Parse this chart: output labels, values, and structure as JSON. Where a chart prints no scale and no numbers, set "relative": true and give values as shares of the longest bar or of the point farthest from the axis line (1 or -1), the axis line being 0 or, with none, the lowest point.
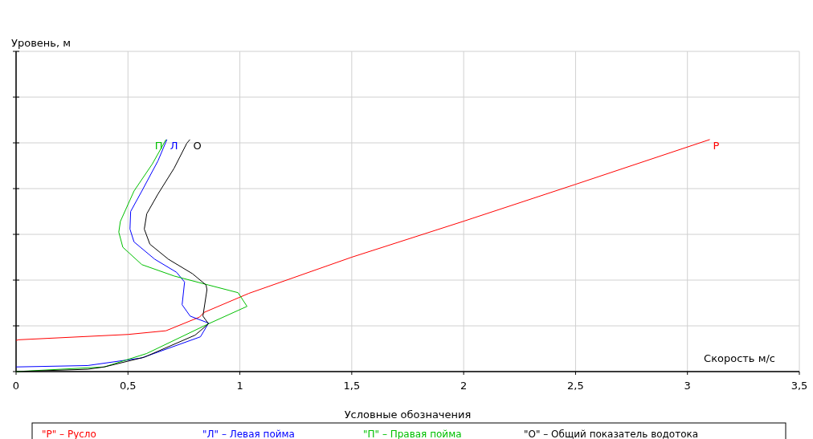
{
  "chart_data": {
    "type": "line",
    "relative": true,
    "xlabel": "Скорость м/с",
    "legend_title": "Условные обозначения",
    "legend": "bottom",
    "grid": true,
    "xlim": [
      0,
      3.5
    ],
    "xticks": [
      0,
      {
        "value": 0.5,
        "label": "0,5"
      },
      1,
      {
        "value": 1.5,
        "label": "1,5"
      },
      2,
      {
        "value": 2.5,
        "label": "2,5"
      },
      3,
      {
        "value": 3.5,
        "label": "3,5"
      }
    ],
    "annotations": [
      {
        "text": "Р",
        "x": 3.1,
        "y": 1.0
      },
      {
        "text": "Л",
        "x": 0.674,
        "y": 1.0
      },
      {
        "text": "П",
        "x": 0.67,
        "y": 1.0
      },
      {
        "text": "О",
        "x": 0.777,
        "y": 1.0
      },
      "Уровень, м"
    ],
    "series": [
      {
        "name": "\"Р\" – Русло",
        "color": "#ff0000",
        "x": [
          0,
          0.01,
          0.5,
          0.67,
          0.82,
          0.84,
          1.04,
          1.5,
          2.0,
          2.5,
          3.1
        ],
        "values": [
          0.134,
          0.137,
          0.16,
          0.176,
          0.235,
          0.255,
          0.337,
          0.493,
          0.648,
          0.807,
          1.0
        ]
      },
      {
        "name": "\"Л\" – Левая пойма",
        "color": "#0000ff",
        "x": [
          0,
          0.32,
          0.562,
          0.824,
          0.86,
          0.778,
          0.742,
          0.753,
          0.717,
          0.62,
          0.527,
          0.509,
          0.512,
          0.562,
          0.634,
          0.674
        ],
        "values": [
          0.02,
          0.026,
          0.059,
          0.15,
          0.209,
          0.239,
          0.288,
          0.386,
          0.428,
          0.484,
          0.559,
          0.614,
          0.69,
          0.778,
          0.908,
          1.0
        ]
      },
      {
        "name": "\"П\" – Правая пойма",
        "color": "#00c000",
        "x": [
          0,
          0.394,
          0.584,
          0.86,
          1.032,
          0.992,
          0.86,
          0.706,
          0.562,
          0.477,
          0.459,
          0.466,
          0.527,
          0.609,
          0.67
        ],
        "values": [
          0,
          0.02,
          0.078,
          0.206,
          0.281,
          0.34,
          0.373,
          0.412,
          0.461,
          0.536,
          0.601,
          0.647,
          0.778,
          0.895,
          1.0
        ]
      },
      {
        "name": "\"О\" – Общий показатель водотока",
        "color": "#000000",
        "x": [
          0,
          0.32,
          0.394,
          0.573,
          0.8,
          0.86,
          0.835,
          0.853,
          0.849,
          0.788,
          0.681,
          0.598,
          0.573,
          0.584,
          0.634,
          0.706,
          0.763,
          0.777
        ],
        "values": [
          0,
          0.01,
          0.02,
          0.062,
          0.157,
          0.206,
          0.239,
          0.353,
          0.373,
          0.422,
          0.484,
          0.549,
          0.614,
          0.68,
          0.765,
          0.876,
          0.984,
          1.0
        ]
      }
    ]
  }
}
